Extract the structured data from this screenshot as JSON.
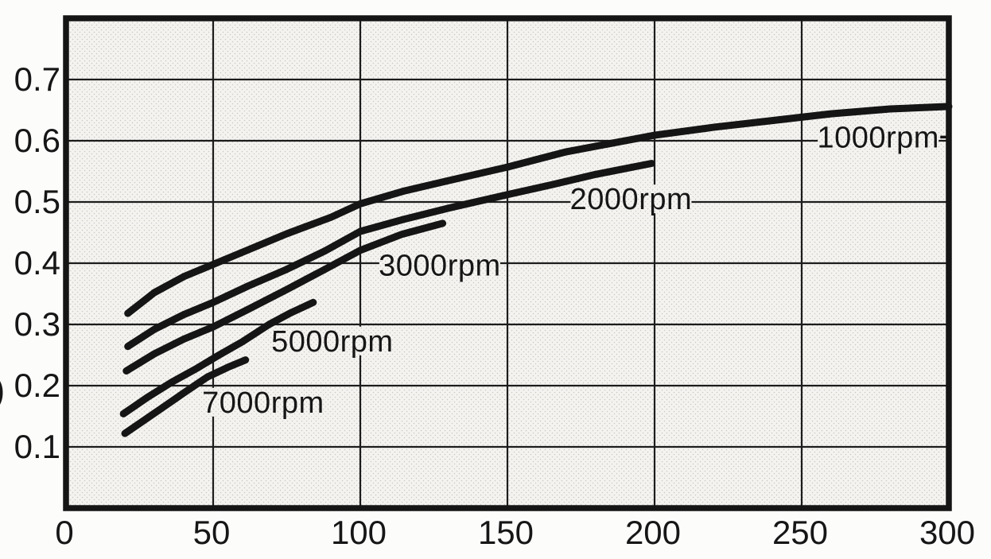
{
  "figure": {
    "description_text": "",
    "ink_color": "#151515",
    "grid_color": "#1c1c1c",
    "plot_bg_color": "#f4f3f0",
    "page_bg_color": "#fcfcfb"
  },
  "chart_data": {
    "type": "line",
    "title": "",
    "xlabel": "",
    "ylabel": "",
    "ylabel_partial_glyph": ")",
    "xlim": [
      0,
      300
    ],
    "ylim": [
      0,
      0.8
    ],
    "grid": true,
    "legend_position": "inline-labels-on-curves",
    "x_tick_labels": [
      "0",
      "50",
      "100",
      "150",
      "200",
      "250",
      "300"
    ],
    "x_tick_values": [
      0,
      50,
      100,
      150,
      200,
      250,
      300
    ],
    "y_tick_labels": [
      "0.7",
      "0.6",
      "0.5",
      "0.4",
      "0.3",
      "0.2",
      "0.1"
    ],
    "y_tick_values": [
      0.7,
      0.6,
      0.5,
      0.4,
      0.3,
      0.2,
      0.1
    ],
    "series": [
      {
        "name": "1000rpm",
        "label": "1000rpm",
        "label_anchor": {
          "x": 276,
          "y": 0.606
        },
        "leader_dash_right": true,
        "x": [
          21,
          30,
          40,
          50,
          60,
          75,
          90,
          100,
          115,
          130,
          150,
          170,
          190,
          200,
          220,
          240,
          260,
          280,
          300
        ],
        "y": [
          0.318,
          0.352,
          0.378,
          0.398,
          0.418,
          0.448,
          0.475,
          0.497,
          0.518,
          0.535,
          0.557,
          0.582,
          0.6,
          0.609,
          0.622,
          0.633,
          0.644,
          0.652,
          0.656
        ]
      },
      {
        "name": "2000rpm",
        "label": "2000rpm",
        "label_anchor": {
          "x": 192,
          "y": 0.505
        },
        "leader_dash_right": false,
        "x": [
          21,
          30,
          40,
          50,
          62,
          75,
          88,
          100,
          115,
          130,
          150,
          165,
          180,
          199
        ],
        "y": [
          0.264,
          0.292,
          0.316,
          0.336,
          0.363,
          0.39,
          0.42,
          0.452,
          0.472,
          0.49,
          0.512,
          0.528,
          0.545,
          0.563
        ]
      },
      {
        "name": "3000rpm",
        "label": "3000rpm",
        "label_anchor": {
          "x": 127,
          "y": 0.397
        },
        "leader_dash_right": false,
        "x": [
          20.5,
          30,
          40,
          50,
          62,
          75,
          88,
          100,
          114,
          128
        ],
        "y": [
          0.224,
          0.252,
          0.276,
          0.296,
          0.325,
          0.357,
          0.39,
          0.421,
          0.447,
          0.465
        ]
      },
      {
        "name": "5000rpm",
        "label": "5000rpm",
        "label_anchor": {
          "x": 90.5,
          "y": 0.273
        },
        "leader_dash_right": false,
        "x": [
          19.5,
          28,
          36,
          44,
          52,
          60,
          69,
          76,
          84
        ],
        "y": [
          0.154,
          0.182,
          0.206,
          0.227,
          0.25,
          0.272,
          0.3,
          0.318,
          0.336
        ]
      },
      {
        "name": "7000rpm",
        "label": "7000rpm",
        "label_anchor": {
          "x": 67,
          "y": 0.173
        },
        "leader_dash_right": false,
        "x": [
          20,
          27,
          34,
          40,
          48,
          55,
          61
        ],
        "y": [
          0.122,
          0.145,
          0.168,
          0.188,
          0.214,
          0.23,
          0.242
        ]
      }
    ]
  }
}
